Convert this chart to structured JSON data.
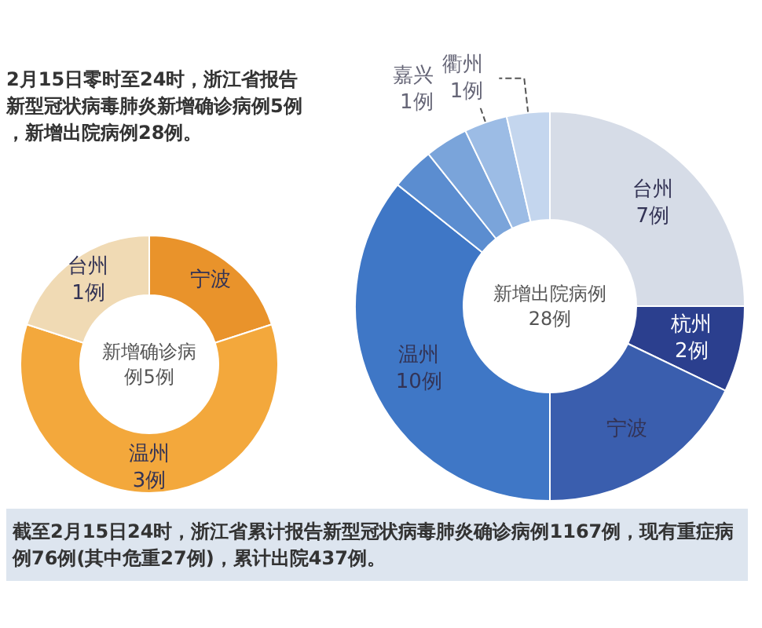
{
  "chart_data": [
    {
      "type": "donut",
      "title": "新增确诊病例5例",
      "annotations": [
        "2月15日零时至24时，浙江省报告新型冠状病毒肺炎新增确诊病例5例，新增出院病例28例。"
      ],
      "categories": [
        "宁波",
        "温州",
        "台州"
      ],
      "values": [
        1,
        3,
        1
      ],
      "colors": [
        "#e9932b",
        "#f3a83c",
        "#f0dab4"
      ],
      "value_labels": [
        null,
        "3例",
        "1例"
      ]
    },
    {
      "type": "donut",
      "title": "新增出院病例28例",
      "annotations": [
        "截至2月15日24时，浙江省累计报告新型冠状病毒肺炎确诊病例1167例，现有重症病例76例(其中危重27例)，累计出院437例。"
      ],
      "categories": [
        "台州",
        "杭州",
        "宁波",
        "温州",
        null,
        null,
        "嘉兴",
        "衢州"
      ],
      "values": [
        7,
        2,
        5,
        10,
        1,
        1,
        1,
        1
      ],
      "colors": [
        "#d6dce7",
        "#2b3f8e",
        "#3a5eae",
        "#3f77c6",
        "#5b8dd0",
        "#7aa4da",
        "#9cbce5",
        "#c4d6ee"
      ],
      "value_labels": [
        "7例",
        "2例",
        null,
        "10例",
        null,
        null,
        "1例",
        "1例"
      ]
    }
  ]
}
